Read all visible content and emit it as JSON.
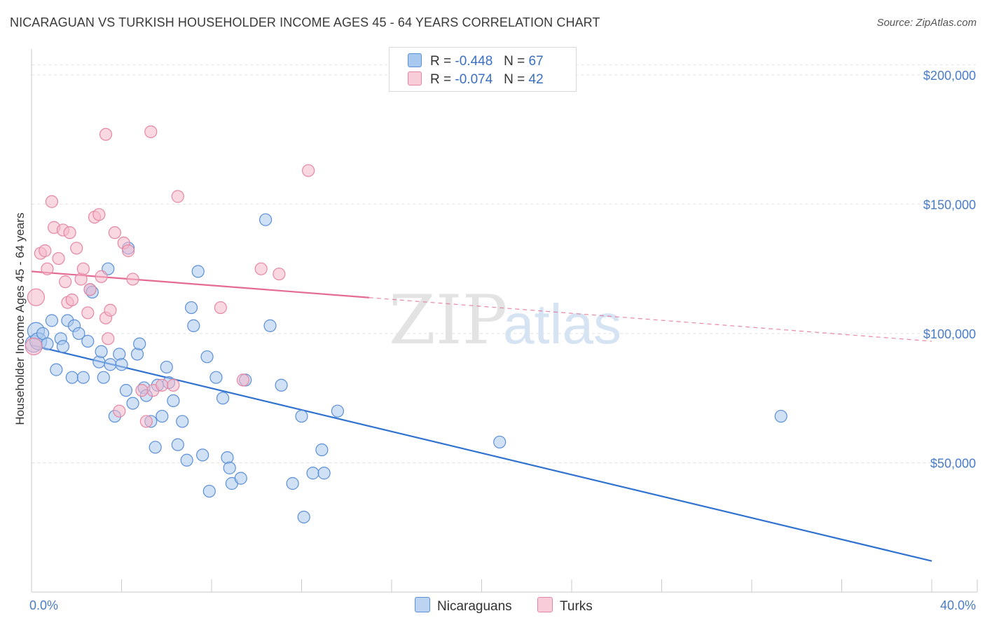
{
  "title": "NICARAGUAN VS TURKISH HOUSEHOLDER INCOME AGES 45 - 64 YEARS CORRELATION CHART",
  "source": "Source: ZipAtlas.com",
  "watermark": {
    "zip": "ZIP",
    "atlas": "atlas"
  },
  "legend": {
    "rows": [
      {
        "r_label": "R =",
        "r_value": "-0.448",
        "n_label": "N =",
        "n_value": "67",
        "color": "#a9c8ee"
      },
      {
        "r_label": "R =",
        "r_value": "-0.074",
        "n_label": "N =",
        "n_value": "42",
        "color": "#f5b8ca"
      }
    ]
  },
  "bottom_legend": [
    {
      "label": "Nicaraguans",
      "color": "#a9c8ee"
    },
    {
      "label": "Turks",
      "color": "#f5b8ca"
    }
  ],
  "chart_data": {
    "type": "scatter",
    "xlabel": "",
    "ylabel": "Householder Income Ages 45 - 64 years",
    "xlim": [
      0,
      40
    ],
    "ylim": [
      0,
      210000
    ],
    "x_tick_labels": [
      "0.0%",
      "40.0%"
    ],
    "y_ticks": [
      {
        "value": 50000,
        "label": "$50,000"
      },
      {
        "value": 100000,
        "label": "$100,000"
      },
      {
        "value": 150000,
        "label": "$150,000"
      },
      {
        "value": 200000,
        "label": "$200,000"
      }
    ],
    "grid": "horizontal dashed",
    "series": [
      {
        "name": "Nicaraguans",
        "color": "#a9c8ee",
        "edge": "#5b8fd6",
        "line_color": "#2f72d0",
        "trend": {
          "x0": 0,
          "y0": 95500,
          "x1": 40,
          "y1": 12000,
          "dashed_from": 40
        },
        "points": [
          [
            0.1,
            96000
          ],
          [
            0.2,
            101000
          ],
          [
            0.3,
            97000
          ],
          [
            0.5,
            100000
          ],
          [
            0.7,
            96000
          ],
          [
            0.9,
            105000
          ],
          [
            1.1,
            86000
          ],
          [
            1.3,
            98000
          ],
          [
            1.4,
            95000
          ],
          [
            1.6,
            105000
          ],
          [
            1.8,
            83000
          ],
          [
            1.9,
            103000
          ],
          [
            2.1,
            100000
          ],
          [
            2.3,
            83000
          ],
          [
            2.5,
            97000
          ],
          [
            2.6,
            117000
          ],
          [
            2.7,
            116000
          ],
          [
            3.0,
            89000
          ],
          [
            3.1,
            93000
          ],
          [
            3.2,
            83000
          ],
          [
            3.4,
            125000
          ],
          [
            3.5,
            88000
          ],
          [
            3.7,
            68000
          ],
          [
            3.9,
            92000
          ],
          [
            4.0,
            88000
          ],
          [
            4.2,
            78000
          ],
          [
            4.3,
            133000
          ],
          [
            4.5,
            73000
          ],
          [
            4.7,
            92000
          ],
          [
            4.8,
            96000
          ],
          [
            5.0,
            79000
          ],
          [
            5.1,
            76000
          ],
          [
            5.3,
            66000
          ],
          [
            5.5,
            56000
          ],
          [
            5.6,
            80000
          ],
          [
            5.8,
            68000
          ],
          [
            6.0,
            87000
          ],
          [
            6.1,
            81000
          ],
          [
            6.3,
            74000
          ],
          [
            6.5,
            57000
          ],
          [
            6.7,
            66000
          ],
          [
            6.9,
            51000
          ],
          [
            7.1,
            110000
          ],
          [
            7.2,
            103000
          ],
          [
            7.4,
            124000
          ],
          [
            7.6,
            53000
          ],
          [
            7.8,
            91000
          ],
          [
            7.9,
            39000
          ],
          [
            8.2,
            83000
          ],
          [
            8.5,
            75000
          ],
          [
            8.7,
            52000
          ],
          [
            8.8,
            48000
          ],
          [
            8.9,
            42000
          ],
          [
            9.3,
            44000
          ],
          [
            9.5,
            82000
          ],
          [
            10.4,
            144000
          ],
          [
            10.6,
            103000
          ],
          [
            11.1,
            80000
          ],
          [
            11.6,
            42000
          ],
          [
            12.0,
            68000
          ],
          [
            12.1,
            29000
          ],
          [
            12.5,
            46000
          ],
          [
            12.9,
            55000
          ],
          [
            13.0,
            46000
          ],
          [
            13.6,
            70000
          ],
          [
            20.8,
            58000
          ],
          [
            33.3,
            68000
          ]
        ]
      },
      {
        "name": "Turks",
        "color": "#f5b8ca",
        "edge": "#e587a3",
        "line_color": "#e46b92",
        "trend": {
          "x0": 0,
          "y0": 124000,
          "x1": 40,
          "y1": 97000,
          "dashed_from": 15
        },
        "points": [
          [
            0.1,
            95000
          ],
          [
            0.2,
            114000
          ],
          [
            0.4,
            131000
          ],
          [
            0.6,
            132000
          ],
          [
            0.7,
            125000
          ],
          [
            0.9,
            151000
          ],
          [
            1.0,
            141000
          ],
          [
            1.2,
            129000
          ],
          [
            1.4,
            140000
          ],
          [
            1.5,
            120000
          ],
          [
            1.6,
            112000
          ],
          [
            1.7,
            139000
          ],
          [
            1.8,
            113000
          ],
          [
            2.0,
            133000
          ],
          [
            2.2,
            121000
          ],
          [
            2.3,
            125000
          ],
          [
            2.5,
            108000
          ],
          [
            2.6,
            117000
          ],
          [
            2.8,
            145000
          ],
          [
            3.0,
            146000
          ],
          [
            3.1,
            122000
          ],
          [
            3.3,
            106000
          ],
          [
            3.4,
            98000
          ],
          [
            3.5,
            109000
          ],
          [
            3.7,
            139000
          ],
          [
            3.9,
            70000
          ],
          [
            4.1,
            135000
          ],
          [
            4.3,
            132000
          ],
          [
            4.5,
            121000
          ],
          [
            4.9,
            78000
          ],
          [
            5.1,
            66000
          ],
          [
            5.3,
            178000
          ],
          [
            5.4,
            78000
          ],
          [
            5.8,
            80000
          ],
          [
            6.3,
            80000
          ],
          [
            6.5,
            153000
          ],
          [
            8.4,
            110000
          ],
          [
            9.4,
            82000
          ],
          [
            10.2,
            125000
          ],
          [
            11.0,
            123000
          ],
          [
            12.3,
            163000
          ],
          [
            3.3,
            177000
          ]
        ]
      }
    ]
  }
}
